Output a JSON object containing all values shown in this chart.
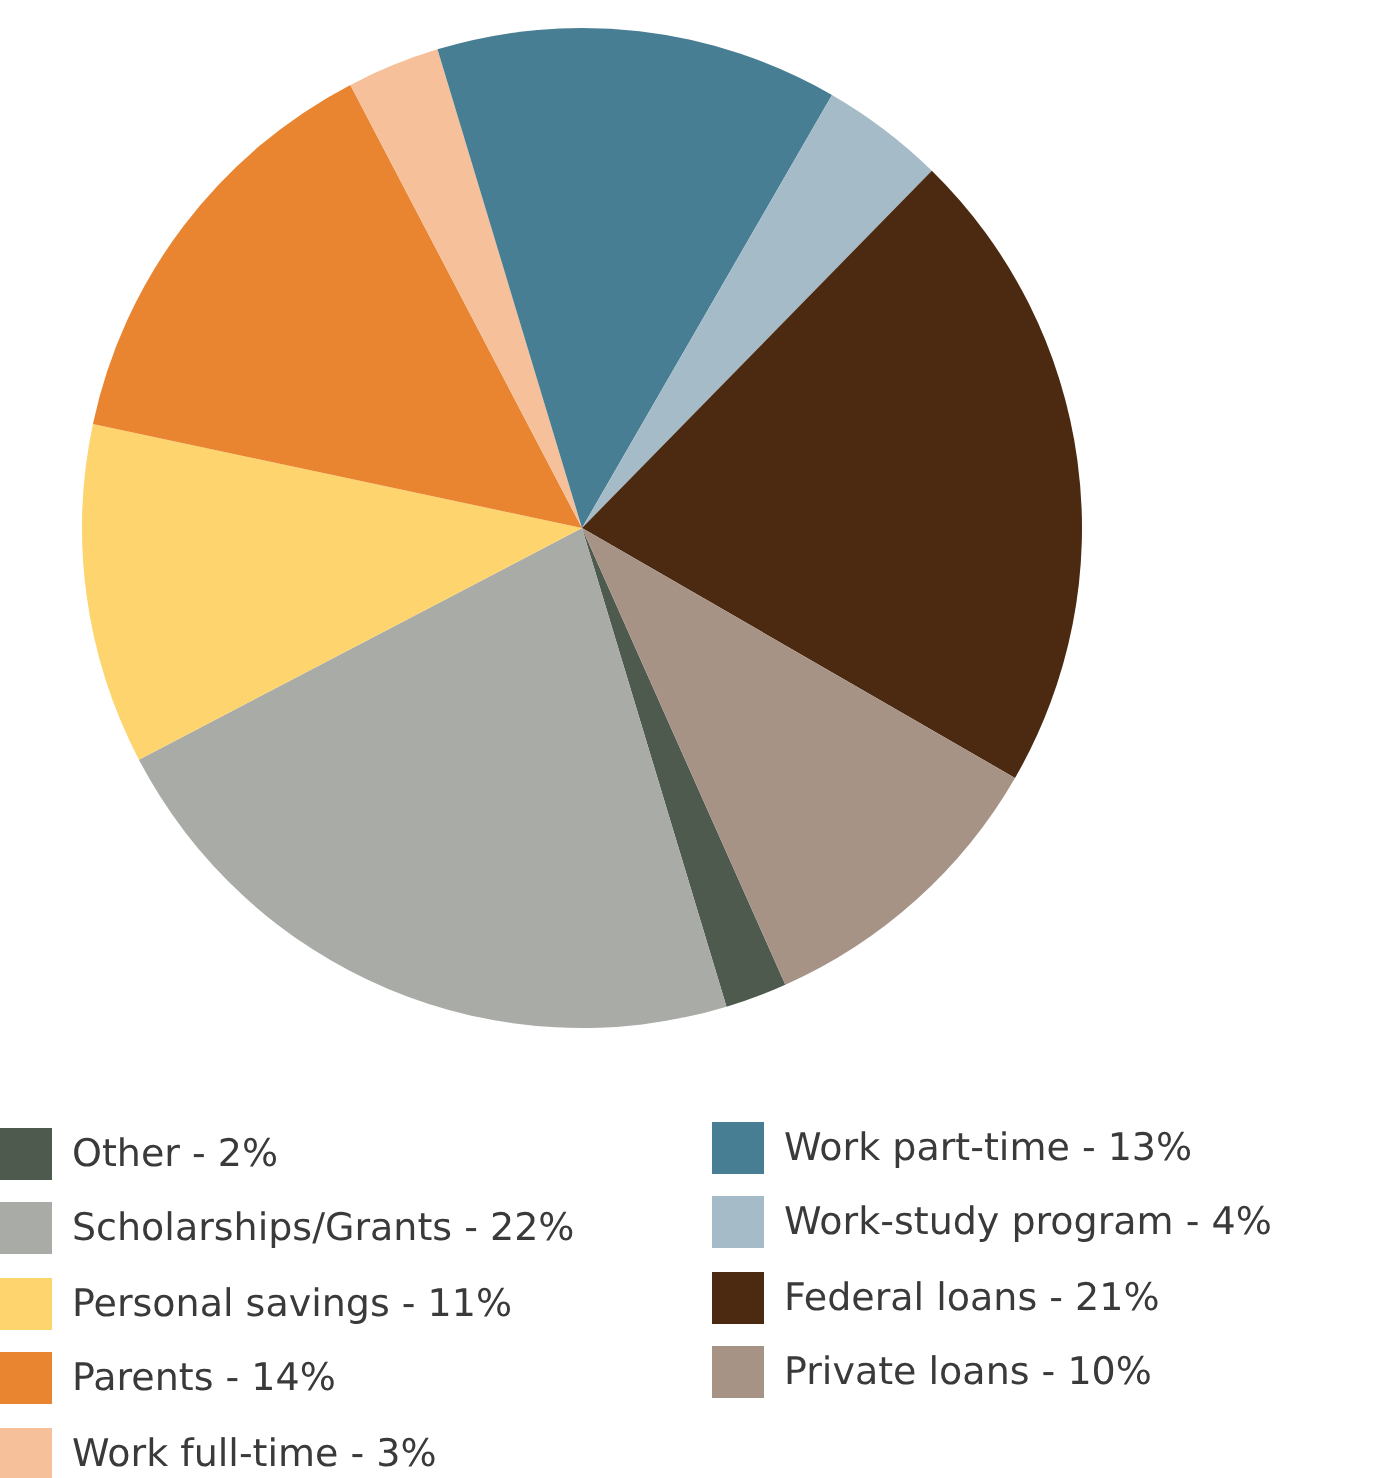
{
  "chart_data": {
    "type": "pie",
    "categories": [
      "Other - 2%",
      "Scholarships/Grants - 22%",
      "Personal savings - 11%",
      "Parents - 14%",
      "Work full-time - 3%",
      "Work part-time - 13%",
      "Work-study program - 4%",
      "Federal loans - 21%",
      "Private loans - 10%"
    ],
    "values": [
      2,
      22,
      11,
      14,
      3,
      13,
      4,
      21,
      10
    ],
    "colors": [
      "#4f5a4f",
      "#a9aba7",
      "#fdd46e",
      "#e98530",
      "#f5c09a",
      "#477e94",
      "#a5bcc8",
      "#4b2a11",
      "#a69386"
    ],
    "legend": "bottom"
  }
}
